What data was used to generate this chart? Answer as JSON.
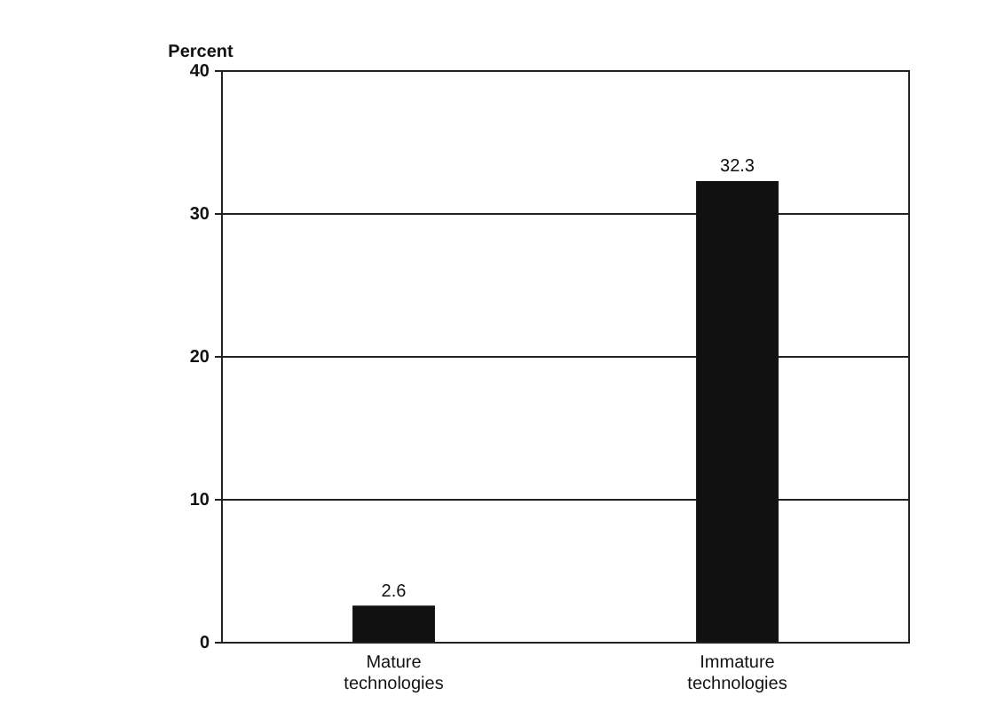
{
  "chart_data": {
    "type": "bar",
    "ylabel": "Percent",
    "categories": [
      "Mature technologies",
      "Immature technologies"
    ],
    "values": [
      2.6,
      32.3
    ],
    "color": "#111111",
    "ylim": [
      0,
      40
    ],
    "yticks": [
      0,
      10,
      20,
      30,
      40
    ],
    "grid": "y",
    "data_labels": true
  }
}
